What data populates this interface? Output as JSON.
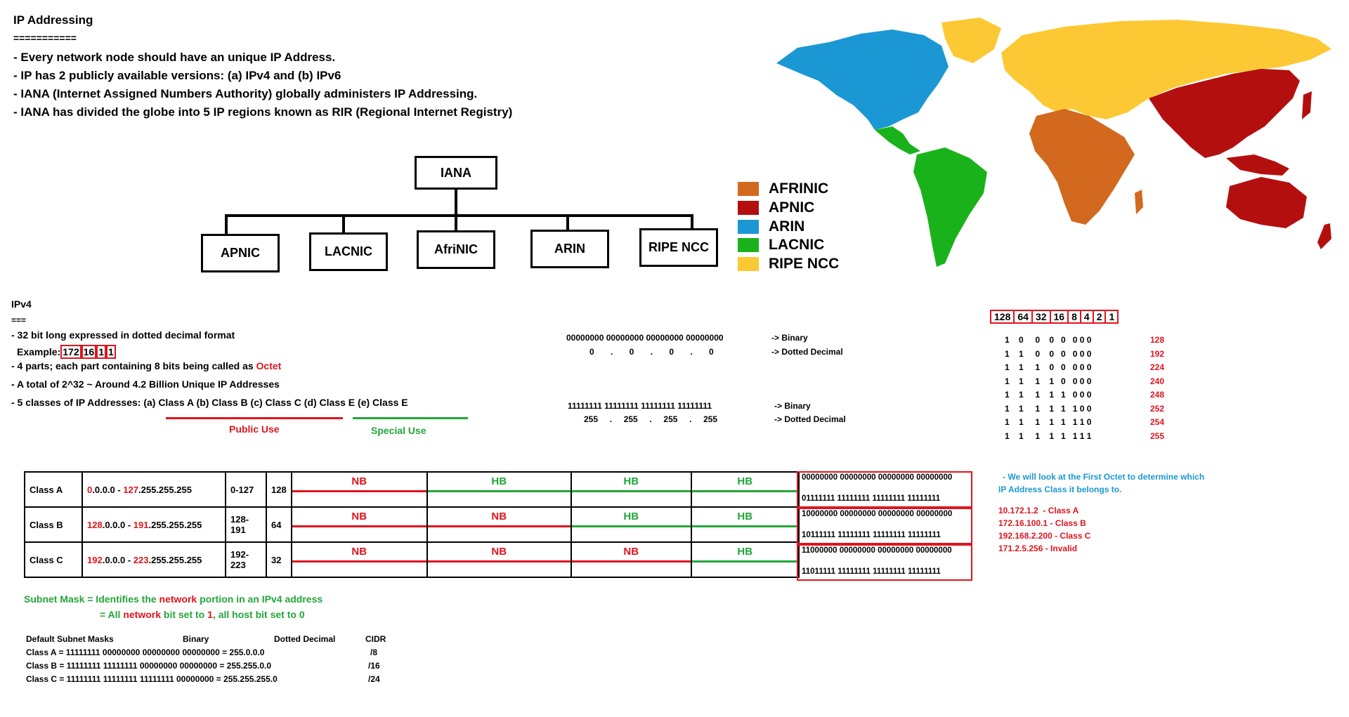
{
  "header": {
    "title": "IP Addressing",
    "underline": "===========",
    "bullets": [
      "- Every network node should have an unique IP Address.",
      "- IP has 2 publicly available versions: (a) IPv4 and (b) IPv6",
      "- IANA (Internet Assigned Numbers Authority) globally administers IP Addressing.",
      "- IANA has divided the globe into 5 IP regions known as RIR (Regional Internet Registry)"
    ]
  },
  "tree": {
    "root": "IANA",
    "children": [
      "APNIC",
      "LACNIC",
      "AfriNIC",
      "ARIN",
      "RIPE NCC"
    ]
  },
  "map_legend": [
    {
      "label": "AFRINIC",
      "color": "#d2691e"
    },
    {
      "label": "APNIC",
      "color": "#b40f0f"
    },
    {
      "label": "ARIN",
      "color": "#1b98d4"
    },
    {
      "label": "LACNIC",
      "color": "#1ab21a"
    },
    {
      "label": "RIPE NCC",
      "color": "#fcc934"
    }
  ],
  "ipv4": {
    "title": "IPv4",
    "underline": "===",
    "line1": "- 32 bit long expressed in dotted decimal format",
    "example_prefix": "Example:",
    "example_octets": [
      "172",
      "16",
      "1",
      "1"
    ],
    "line3_prefix": "- 4 parts; each part containing 8 bits being called as ",
    "line3_highlight": "Octet",
    "line4": "- A total of 2^32 ~ Around 4.2 Billion Unique IP Addresses",
    "line5": "- 5 classes of IP Addresses: (a) Class A (b) Class B (c) Class C (d) Class E (e) Class E",
    "public_use": "Public Use",
    "special_use": "Special Use"
  },
  "binary_examples": [
    {
      "binary": "00000000 00000000 00000000 00000000",
      "binary_label": "-> Binary",
      "dotted": "0       .       0       .       0       .       0",
      "dotted_label": "-> Dotted Decimal"
    },
    {
      "binary": "11111111 11111111 11111111 11111111",
      "binary_label": "-> Binary",
      "dotted": "255     .     255     .     255     .     255",
      "dotted_label": "-> Dotted Decimal"
    }
  ],
  "bit_values": {
    "header": [
      "128",
      "64",
      "32",
      "16",
      "8",
      "4",
      "2",
      "1"
    ],
    "rows": [
      {
        "bits": "1    0     0    0   0   0 0 0",
        "value": "128"
      },
      {
        "bits": "1    1     0    0   0   0 0 0",
        "value": "192"
      },
      {
        "bits": "1    1     1    0   0   0 0 0",
        "value": "224"
      },
      {
        "bits": "1    1     1    1   0   0 0 0",
        "value": "240"
      },
      {
        "bits": "1    1     1    1   1   0 0 0",
        "value": "248"
      },
      {
        "bits": "1    1     1    1   1   1 0 0",
        "value": "252"
      },
      {
        "bits": "1    1     1    1   1   1 1 0",
        "value": "254"
      },
      {
        "bits": "1    1     1    1   1   1 1 1",
        "value": "255"
      }
    ]
  },
  "classes": [
    {
      "name": "Class A",
      "range_start_red": "0",
      "range_start_rest": ".0.0.0 - ",
      "range_end_red": "127",
      "range_end_rest": ".255.255.255",
      "octet_range": "0-127",
      "count": "128",
      "segments": [
        "NB",
        "HB",
        "HB",
        "HB"
      ],
      "bin_top": "00000000 00000000 00000000 00000000",
      "bin_bottom": "01111111 11111111 11111111 11111111"
    },
    {
      "name": "Class B",
      "range_start_red": "128",
      "range_start_rest": ".0.0.0 - ",
      "range_end_red": "191",
      "range_end_rest": ".255.255.255",
      "octet_range": "128-191",
      "count": "64",
      "segments": [
        "NB",
        "NB",
        "HB",
        "HB"
      ],
      "bin_top": "10000000 00000000 00000000 00000000",
      "bin_bottom": "10111111 11111111 11111111 11111111"
    },
    {
      "name": "Class C",
      "range_start_red": "192",
      "range_start_rest": ".0.0.0 - ",
      "range_end_red": "223",
      "range_end_rest": ".255.255.255",
      "octet_range": "192-223",
      "count": "32",
      "segments": [
        "NB",
        "NB",
        "NB",
        "HB"
      ],
      "bin_top": "11000000 00000000 00000000 00000000",
      "bin_bottom": "11011111 11111111 11111111 11111111"
    }
  ],
  "first_octet_note": {
    "line1": "- We will look at the First Octet to determine which",
    "line2": "IP Address Class it belongs to.",
    "examples": [
      "10.172.1.2  - Class A",
      "172.16.100.1 - Class B",
      "192.168.2.200 - Class C",
      "171.2.5.256 - Invalid"
    ]
  },
  "subnet": {
    "line1_a": "Subnet Mask = Identifies the ",
    "line1_b": "network",
    "line1_c": " portion in an IPv4 address",
    "line2_a": "= All ",
    "line2_b": "network",
    "line2_c": " bit set to ",
    "line2_d": "1",
    "line2_e": ", all host bit set to 0",
    "table_headers": [
      "Default Subnet Masks",
      "Binary",
      "Dotted Decimal",
      "CIDR"
    ],
    "rows": [
      {
        "mask": "Class A = 11111111 00000000 00000000 00000000 = 255.0.0.0",
        "cidr": "/8"
      },
      {
        "mask": "Class B = 11111111 11111111 00000000 00000000 = 255.255.0.0",
        "cidr": "/16"
      },
      {
        "mask": "Class C = 11111111 11111111 11111111 00000000 = 255.255.255.0",
        "cidr": "/24"
      }
    ]
  },
  "colors": {
    "red": "#e0141e",
    "green": "#22a638",
    "blue": "#1b98d4"
  }
}
